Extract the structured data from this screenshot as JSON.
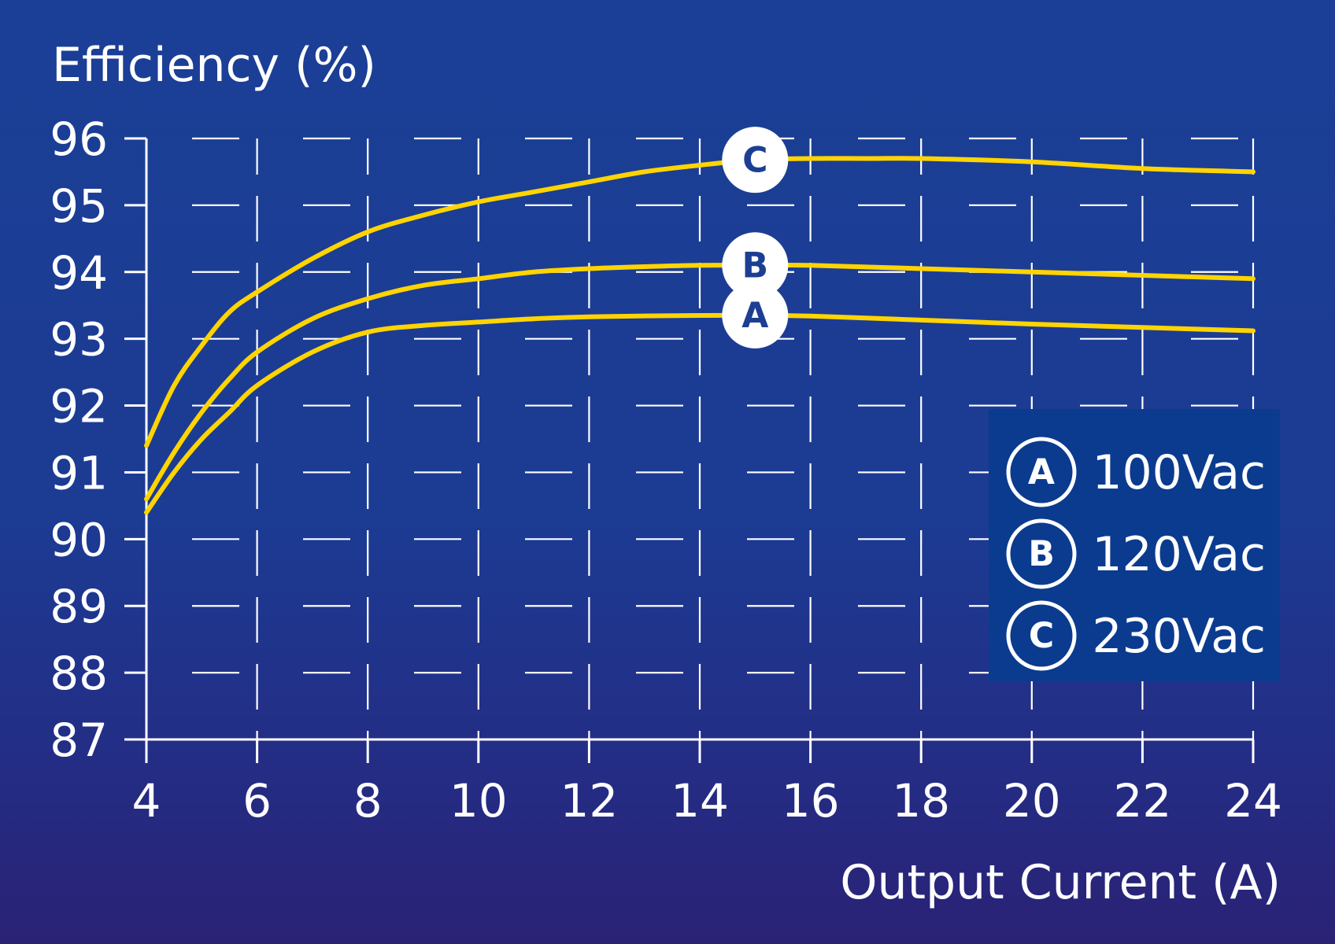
{
  "chart_data": {
    "type": "line",
    "ylabel": "Efficiency (%)",
    "xlabel": "Output Current (A)",
    "xlim": [
      4,
      24
    ],
    "ylim": [
      87,
      96
    ],
    "x_ticks": [
      4,
      6,
      8,
      10,
      12,
      14,
      16,
      18,
      20,
      22,
      24
    ],
    "y_ticks": [
      87,
      88,
      89,
      90,
      91,
      92,
      93,
      94,
      95,
      96
    ],
    "grid": "dashed",
    "legend_position": "right",
    "series_color": "#ffd400",
    "series": [
      {
        "marker": "A",
        "name": "100Vac",
        "x": [
          4,
          4.5,
          5,
          5.5,
          6,
          7,
          8,
          9,
          10,
          11,
          12,
          14,
          15,
          16,
          18,
          20,
          22,
          24
        ],
        "y": [
          90.4,
          91.0,
          91.5,
          91.9,
          92.3,
          92.8,
          93.1,
          93.2,
          93.25,
          93.3,
          93.33,
          93.35,
          93.35,
          93.34,
          93.28,
          93.22,
          93.17,
          93.12
        ]
      },
      {
        "marker": "B",
        "name": "120Vac",
        "x": [
          4,
          4.5,
          5,
          5.5,
          6,
          7,
          8,
          9,
          10,
          11,
          12,
          13,
          14,
          15,
          16,
          18,
          20,
          22,
          24
        ],
        "y": [
          90.6,
          91.3,
          91.9,
          92.4,
          92.8,
          93.3,
          93.6,
          93.8,
          93.9,
          94.0,
          94.05,
          94.08,
          94.1,
          94.1,
          94.1,
          94.05,
          94.0,
          93.95,
          93.9
        ]
      },
      {
        "marker": "C",
        "name": "230Vac",
        "x": [
          4,
          4.5,
          5,
          5.5,
          6,
          7,
          8,
          9,
          10,
          11,
          12,
          13,
          14,
          15,
          16,
          17,
          18,
          20,
          22,
          24
        ],
        "y": [
          91.4,
          92.3,
          92.9,
          93.4,
          93.7,
          94.2,
          94.6,
          94.85,
          95.05,
          95.2,
          95.35,
          95.5,
          95.6,
          95.68,
          95.7,
          95.7,
          95.7,
          95.65,
          95.55,
          95.5
        ]
      }
    ]
  }
}
